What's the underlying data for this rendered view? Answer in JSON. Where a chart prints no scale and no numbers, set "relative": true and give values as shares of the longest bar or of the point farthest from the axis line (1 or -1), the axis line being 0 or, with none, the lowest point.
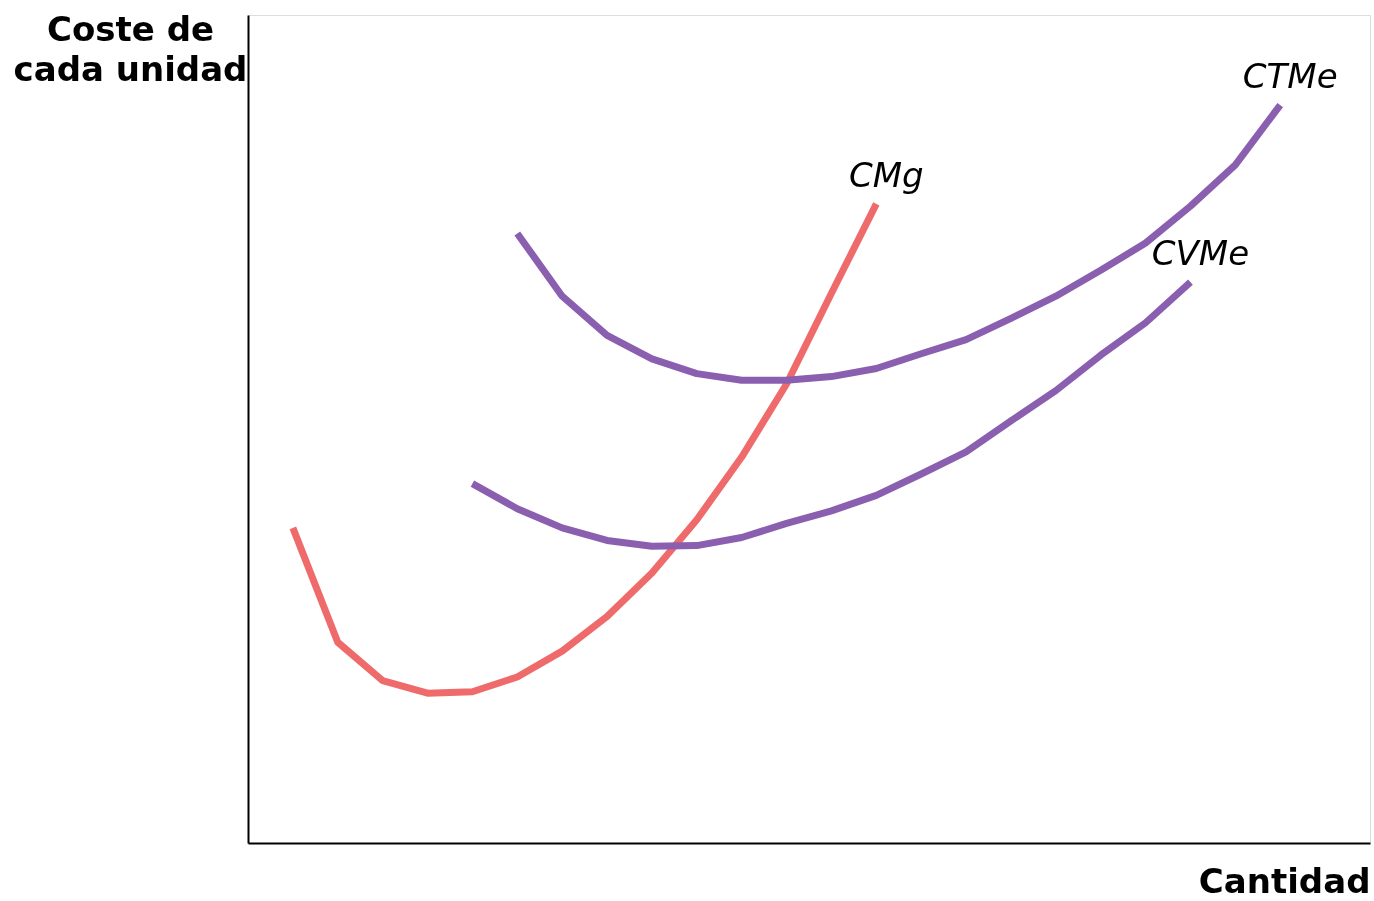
{
  "chart_data": {
    "type": "line",
    "relative": true,
    "xlabel": "Cantidad",
    "ylabel": "Coste de cada unidad",
    "tick_labels": false,
    "line_style": "solid",
    "categories": [
      null,
      null,
      null,
      null,
      null,
      null,
      null,
      null,
      null,
      null,
      null,
      null,
      null,
      null,
      null,
      null,
      null,
      null,
      null,
      null,
      null,
      null,
      null
    ],
    "series": [
      {
        "name": "CMg",
        "color": "#ef6b6b",
        "values": [
          0.427,
          0.272,
          0.22,
          0.203,
          0.205,
          0.225,
          0.26,
          0.307,
          0.366,
          0.438,
          0.523,
          0.622,
          0.745,
          0.866,
          null,
          null,
          null,
          null,
          null,
          null,
          null,
          null,
          null
        ]
      },
      {
        "name": "CVMe",
        "color": "#8a5fb0",
        "values": [
          null,
          null,
          null,
          null,
          0.487,
          0.453,
          0.427,
          0.41,
          0.402,
          0.403,
          0.414,
          0.433,
          0.45,
          0.471,
          0.5,
          0.53,
          0.572,
          0.613,
          0.661,
          0.705,
          0.76,
          null,
          null
        ]
      },
      {
        "name": "CTMe",
        "color": "#8a5fb0",
        "values": [
          null,
          null,
          null,
          null,
          null,
          0.826,
          0.741,
          0.688,
          0.656,
          0.636,
          0.627,
          0.627,
          0.632,
          0.643,
          0.663,
          0.682,
          0.711,
          0.741,
          0.776,
          0.813,
          0.863,
          0.919,
          1.0
        ]
      }
    ]
  }
}
